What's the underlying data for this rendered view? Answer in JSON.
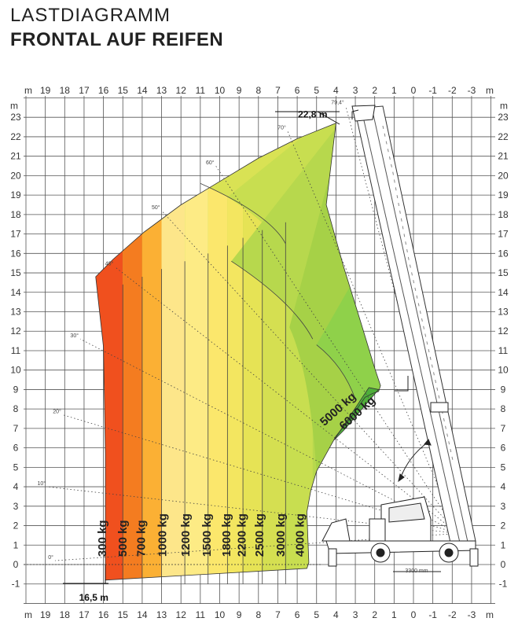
{
  "header": {
    "title": "LASTDIAGRAMM",
    "subtitle": "FRONTAL AUF REIFEN"
  },
  "chart_data": {
    "type": "area",
    "title": "LASTDIAGRAMM",
    "subtitle": "FRONTAL AUF REIFEN",
    "xlabel": "m",
    "ylabel": "m",
    "x_ticks": [
      19,
      18,
      17,
      16,
      15,
      14,
      13,
      12,
      11,
      10,
      9,
      8,
      7,
      6,
      5,
      4,
      3,
      2,
      1,
      0,
      -1,
      -2,
      -3
    ],
    "y_ticks": [
      23,
      22,
      21,
      20,
      19,
      18,
      17,
      16,
      15,
      14,
      13,
      12,
      11,
      10,
      9,
      8,
      7,
      6,
      5,
      4,
      3,
      2,
      1,
      0,
      -1
    ],
    "x_tick_labels": [
      "19",
      "18",
      "17",
      "16",
      "15",
      "14",
      "13",
      "12",
      "11",
      "10",
      "9",
      "8",
      "7",
      "6",
      "5",
      "4",
      "3",
      "2",
      "1",
      "0",
      "-1",
      "-2",
      "-3"
    ],
    "y_tick_labels": [
      "23",
      "22",
      "21",
      "20",
      "19",
      "18",
      "17",
      "16",
      "15",
      "14",
      "13",
      "12",
      "11",
      "10",
      "9",
      "8",
      "7",
      "6",
      "5",
      "4",
      "3",
      "2",
      "1",
      "0",
      "-1"
    ],
    "xlim": [
      20,
      -4
    ],
    "ylim": [
      -2,
      25
    ],
    "grid": true,
    "series": [
      {
        "name": "300 kg",
        "color": "#f0501e",
        "boundary": [
          [
            16.0,
            -0.9
          ],
          [
            16.1,
            6.5
          ],
          [
            16.4,
            12.7
          ],
          [
            16.6,
            14.3
          ],
          [
            16.8,
            14.7
          ],
          [
            15.6,
            15.6
          ],
          [
            15.9,
            12.0
          ],
          [
            16.0,
            6.0
          ],
          [
            15.9,
            -0.8
          ]
        ]
      },
      {
        "name": "500 kg",
        "color": "#f47c20",
        "boundary": [
          [
            15.0,
            -0.7
          ],
          [
            15.1,
            13.0
          ],
          [
            15.1,
            15.8
          ],
          [
            14.4,
            16.4
          ]
        ]
      },
      {
        "name": "700 kg",
        "color": "#fbb034",
        "boundary": [
          [
            14.0,
            -0.6
          ],
          [
            14.1,
            14.2
          ],
          [
            14.4,
            16.4
          ]
        ]
      },
      {
        "name": "1000 kg",
        "color": "#fde68a",
        "boundary": [
          [
            13.0,
            -0.5
          ],
          [
            13.1,
            15.5
          ],
          [
            13.6,
            17.2
          ]
        ]
      },
      {
        "name": "1200 kg",
        "color": "#fdeb85",
        "boundary": [
          [
            11.8,
            -0.4
          ],
          [
            11.8,
            16.2
          ],
          [
            12.3,
            17.7
          ]
        ]
      },
      {
        "name": "1500 kg",
        "color": "#fbe76c",
        "boundary": [
          [
            10.6,
            -0.3
          ],
          [
            10.7,
            17.0
          ],
          [
            11.1,
            18.4
          ]
        ]
      },
      {
        "name": "1800 kg",
        "color": "#f3e660",
        "boundary": [
          [
            9.6,
            -0.2
          ],
          [
            9.6,
            17.6
          ],
          [
            10.1,
            19.9
          ]
        ]
      },
      {
        "name": "2200 kg",
        "color": "#e6e355",
        "boundary": [
          [
            8.8,
            -0.2
          ],
          [
            8.9,
            18.2
          ],
          [
            9.1,
            20.3
          ]
        ]
      },
      {
        "name": "2500 kg",
        "color": "#d5df51",
        "boundary": [
          [
            7.8,
            -0.1
          ],
          [
            7.8,
            17.7
          ],
          [
            8.2,
            20.9
          ]
        ]
      },
      {
        "name": "3000 kg",
        "color": "#c4dc4e",
        "boundary": [
          [
            6.6,
            0.0
          ],
          [
            6.6,
            16.5
          ],
          [
            7.3,
            17.5
          ],
          [
            9.5,
            18.9
          ],
          [
            11.0,
            19.5
          ]
        ]
      },
      {
        "name": "4000 kg",
        "color": "#a8d548",
        "boundary": [
          [
            5.3,
            0.0
          ],
          [
            5.1,
            11.4
          ],
          [
            6.0,
            12.7
          ],
          [
            9.0,
            15.3
          ]
        ]
      },
      {
        "name": "5000 kg",
        "color": "#7fcc48",
        "boundary": [
          [
            3.0,
            8.5
          ],
          [
            3.5,
            10.0
          ],
          [
            5.0,
            11.3
          ]
        ]
      },
      {
        "name": "6000 kg",
        "color": "#4fae3a",
        "boundary": [
          [
            1.8,
            9.0
          ],
          [
            3.6,
            6.9
          ],
          [
            4.1,
            6.4
          ],
          [
            2.3,
            9.1
          ]
        ]
      }
    ],
    "envelope": [
      [
        15.9,
        -0.8
      ],
      [
        15.9,
        5.7
      ],
      [
        16.0,
        11.2
      ],
      [
        16.4,
        14.8
      ],
      [
        15.5,
        15.7
      ],
      [
        13.9,
        17.1
      ],
      [
        12.0,
        18.5
      ],
      [
        10.0,
        19.7
      ],
      [
        8.0,
        20.9
      ],
      [
        6.0,
        21.9
      ],
      [
        4.0,
        22.7
      ],
      [
        4.5,
        18.5
      ],
      [
        3.6,
        15.3
      ],
      [
        2.7,
        12.4
      ],
      [
        2.0,
        10.1
      ],
      [
        1.7,
        9.2
      ],
      [
        1.8,
        8.9
      ],
      [
        2.1,
        8.8
      ],
      [
        2.5,
        8.6
      ],
      [
        3.2,
        7.6
      ],
      [
        4.0,
        6.6
      ],
      [
        4.5,
        5.7
      ],
      [
        5.0,
        4.8
      ],
      [
        5.3,
        3.8
      ],
      [
        5.5,
        2.7
      ],
      [
        5.4,
        0.1
      ],
      [
        5.5,
        -0.2
      ]
    ],
    "angles": [
      {
        "label": "0°",
        "x": 18.5,
        "y": 0.2
      },
      {
        "label": "10°",
        "x": 18.9,
        "y": 4.0
      },
      {
        "label": "20°",
        "x": 18.1,
        "y": 7.7
      },
      {
        "label": "30°",
        "x": 17.2,
        "y": 11.6
      },
      {
        "label": "40°",
        "x": 15.4,
        "y": 15.3
      },
      {
        "label": "50°",
        "x": 13.0,
        "y": 18.2
      },
      {
        "label": "60°",
        "x": 10.2,
        "y": 20.5
      },
      {
        "label": "70°",
        "x": 6.5,
        "y": 22.3
      },
      {
        "label": "79,4°",
        "x": 3.5,
        "y": 23.6
      }
    ],
    "annotations": [
      {
        "label": "22,8 m",
        "x": 5.2,
        "y": 23.2
      },
      {
        "label": "16,5 m",
        "x": 16.5,
        "y": -1.7
      },
      {
        "label": "3300 mm",
        "x": -0.05,
        "y": 0.2
      }
    ]
  }
}
